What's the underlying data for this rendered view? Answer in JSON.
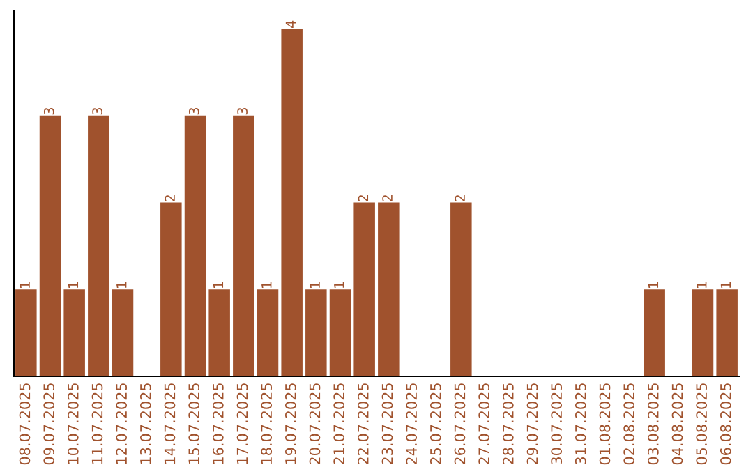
{
  "chart_data": {
    "type": "bar",
    "categories": [
      "08.07.2025",
      "09.07.2025",
      "10.07.2025",
      "11.07.2025",
      "12.07.2025",
      "13.07.2025",
      "14.07.2025",
      "15.07.2025",
      "16.07.2025",
      "17.07.2025",
      "18.07.2025",
      "19.07.2025",
      "20.07.2025",
      "21.07.2025",
      "22.07.2025",
      "23.07.2025",
      "24.07.2025",
      "25.07.2025",
      "26.07.2025",
      "27.07.2025",
      "28.07.2025",
      "29.07.2025",
      "30.07.2025",
      "31.07.2025",
      "01.08.2025",
      "02.08.2025",
      "03.08.2025",
      "04.08.2025",
      "05.08.2025",
      "06.08.2025"
    ],
    "values": [
      1,
      3,
      1,
      3,
      1,
      0,
      2,
      3,
      1,
      3,
      1,
      4,
      1,
      1,
      2,
      2,
      0,
      0,
      2,
      0,
      0,
      0,
      0,
      0,
      0,
      0,
      1,
      0,
      1,
      1
    ],
    "value_labels": [
      "1",
      "3",
      "1",
      "3",
      "1",
      null,
      "2",
      "3",
      "1",
      "3",
      "1",
      "4",
      "1",
      "1",
      "2",
      "2",
      null,
      null,
      "2",
      null,
      null,
      null,
      null,
      null,
      null,
      null,
      "1",
      null,
      "1",
      "1"
    ],
    "color": "#a0522d",
    "ylim": [
      0,
      4.2
    ],
    "tick_labels": "x",
    "grid": false,
    "legend": false
  }
}
